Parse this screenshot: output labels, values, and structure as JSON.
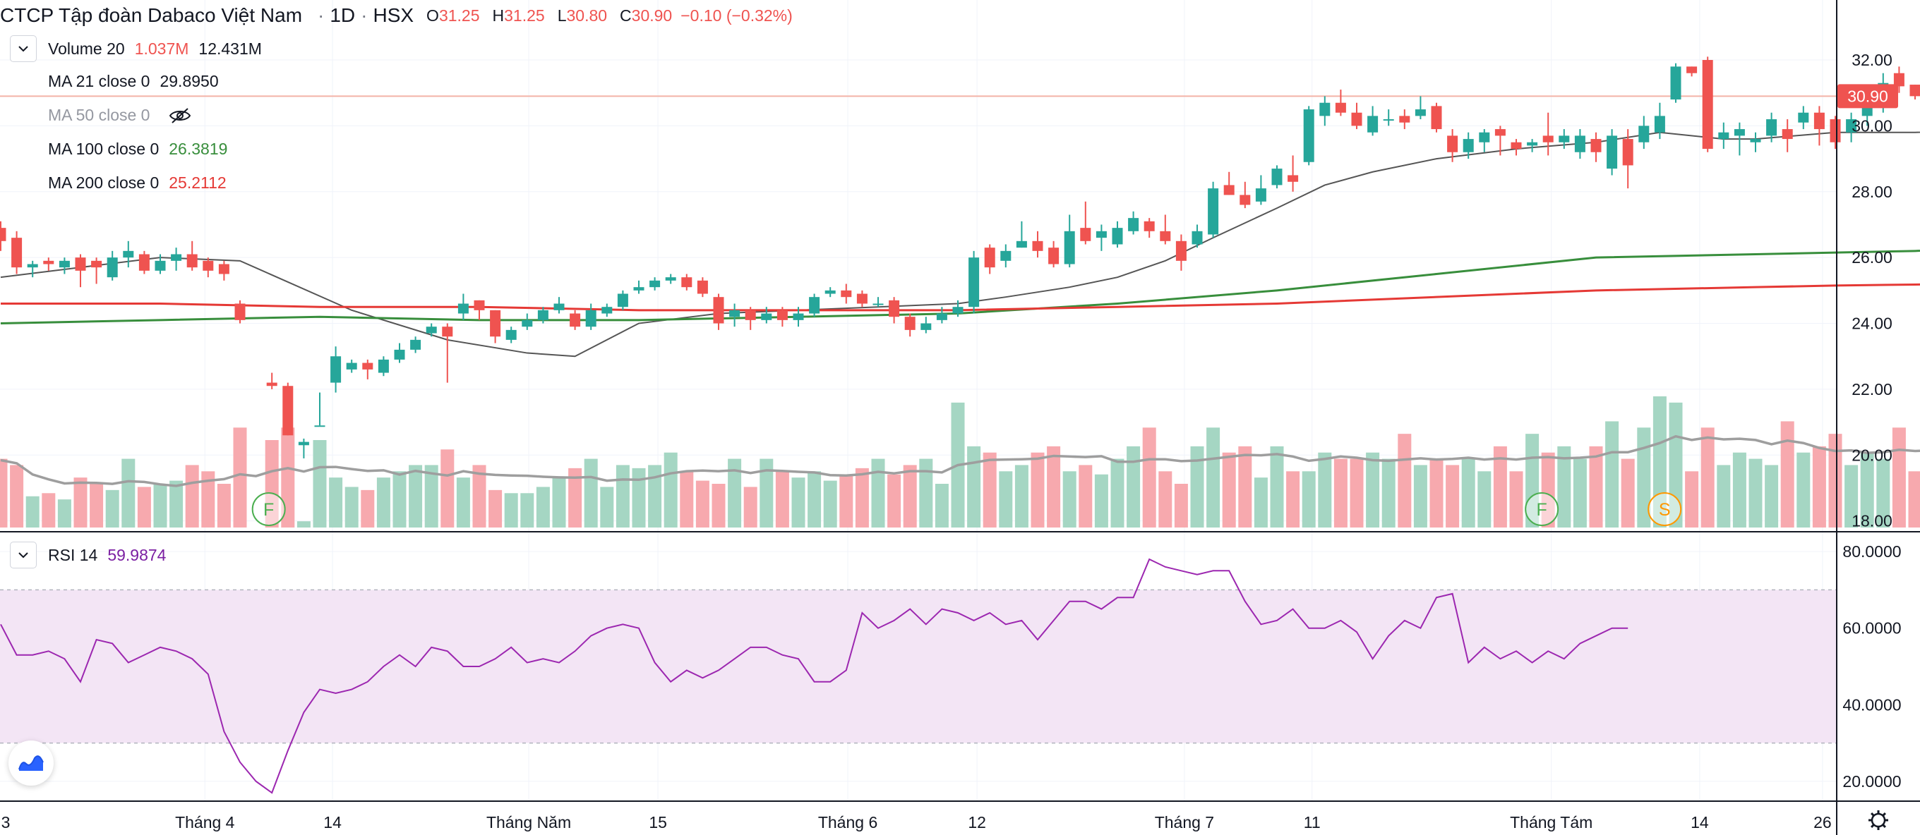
{
  "header": {
    "symbol_name": "CTCP Tập đoàn Dabaco Việt Nam",
    "interval": "1D",
    "exchange": "HSX",
    "sep": "·",
    "open_label": "O",
    "open": "31.25",
    "high_label": "H",
    "high": "31.25",
    "low_label": "L",
    "low": "30.80",
    "close_label": "C",
    "close": "30.90",
    "change": "−0.10 (−0.32%)"
  },
  "legend": {
    "volume": {
      "label": "Volume 20",
      "v1": "1.037M",
      "v2": "12.431M"
    },
    "ma21": {
      "label": "MA 21 close 0",
      "value": "29.8950"
    },
    "ma50": {
      "label": "MA 50 close 0",
      "value": ""
    },
    "ma100": {
      "label": "MA 100 close 0",
      "value": "26.3819"
    },
    "ma200": {
      "label": "MA 200 close 0",
      "value": "25.2112"
    },
    "rsi": {
      "label": "RSI 14",
      "value": "59.9874"
    }
  },
  "colors": {
    "up": "#26a69a",
    "down": "#ef5350",
    "up_volume": "#a5d6c3",
    "down_volume": "#f7a9ae",
    "ma21": "#555555",
    "ma100": "#388e3c",
    "ma200": "#e53935",
    "vol_ma": "#9e9e9e",
    "rsi": "#9c27b0",
    "rsi_band": "#f3e5f5",
    "last_price_line": "#f3b3a8",
    "legend_ma100": "#388e3c",
    "legend_ma200": "#e53935",
    "legend_rsi": "#7b1fa2",
    "legend_change": "#ef5350"
  },
  "icons": {
    "chevron": "chevron-down-icon",
    "eye_hidden": "eye-off-icon",
    "settings": "gear-icon",
    "logo": "tradingview-logo-icon"
  },
  "chart_data": [
    {
      "type": "candlestick",
      "title": "CTCP Tập đoàn Dabaco Việt Nam · 1D · HSX",
      "y_axis_ticks": [
        "32.00",
        "30.00",
        "28.00",
        "26.00",
        "24.00",
        "22.00",
        "20.00",
        "18.00"
      ],
      "y_axis_values": [
        32,
        30,
        28,
        26,
        24,
        22,
        20,
        18
      ],
      "ylim": [
        17.8,
        33.5
      ],
      "last_price_label": "30.90",
      "last_price": 30.9,
      "x_axis_ticks": [
        "3",
        "Tháng 4",
        "14",
        "Tháng Năm",
        "15",
        "Tháng 6",
        "12",
        "Tháng 7",
        "11",
        "Tháng Tám",
        "14",
        "26"
      ],
      "x_axis_tick_bar_index": [
        -0.2,
        12.8,
        20.8,
        33.1,
        41.2,
        53.1,
        61.2,
        74.2,
        82.2,
        97.2,
        106.5,
        114.2
      ],
      "candles": [
        [
          26.9,
          26.5,
          27.1,
          26.2
        ],
        [
          26.6,
          25.7,
          26.8,
          25.5
        ],
        [
          25.7,
          25.8,
          25.9,
          25.4
        ],
        [
          25.9,
          25.8,
          26.0,
          25.6
        ],
        [
          25.7,
          25.9,
          26.0,
          25.5
        ],
        [
          26.0,
          25.6,
          26.1,
          25.1
        ],
        [
          25.9,
          25.7,
          26.0,
          25.2
        ],
        [
          25.4,
          26.0,
          26.2,
          25.3
        ],
        [
          26.0,
          26.2,
          26.5,
          25.7
        ],
        [
          26.1,
          25.6,
          26.2,
          25.5
        ],
        [
          25.6,
          25.9,
          26.1,
          25.5
        ],
        [
          25.9,
          26.1,
          26.3,
          25.6
        ],
        [
          26.1,
          25.7,
          26.5,
          25.6
        ],
        [
          25.9,
          25.6,
          26.0,
          25.4
        ],
        [
          25.8,
          25.5,
          25.9,
          25.3
        ],
        [
          24.6,
          24.1,
          24.7,
          24.0
        ],
        [
          null,
          null,
          null,
          null
        ],
        [
          22.2,
          22.1,
          22.5,
          22.0
        ],
        [
          22.1,
          20.6,
          22.2,
          20.6
        ],
        [
          20.3,
          20.4,
          20.5,
          19.9
        ],
        [
          20.9,
          20.9,
          21.9,
          20.9
        ],
        [
          22.2,
          23.0,
          23.3,
          21.9
        ],
        [
          22.6,
          22.8,
          22.9,
          22.5
        ],
        [
          22.8,
          22.6,
          22.9,
          22.3
        ],
        [
          22.5,
          22.9,
          23.0,
          22.4
        ],
        [
          22.9,
          23.2,
          23.4,
          22.8
        ],
        [
          23.2,
          23.5,
          23.6,
          23.1
        ],
        [
          23.7,
          23.9,
          24.0,
          23.6
        ],
        [
          23.9,
          23.6,
          24.0,
          22.2
        ],
        [
          24.3,
          24.6,
          24.9,
          24.1
        ],
        [
          24.7,
          24.4,
          24.7,
          24.1
        ],
        [
          24.4,
          23.6,
          24.4,
          23.4
        ],
        [
          23.5,
          23.8,
          23.9,
          23.4
        ],
        [
          23.9,
          24.1,
          24.3,
          23.8
        ],
        [
          24.1,
          24.4,
          24.5,
          24.0
        ],
        [
          24.4,
          24.6,
          24.8,
          24.3
        ],
        [
          24.3,
          23.9,
          24.4,
          23.8
        ],
        [
          23.9,
          24.4,
          24.6,
          23.8
        ],
        [
          24.3,
          24.5,
          24.6,
          24.2
        ],
        [
          24.5,
          24.9,
          25.0,
          24.4
        ],
        [
          25.0,
          25.1,
          25.3,
          24.9
        ],
        [
          25.1,
          25.3,
          25.4,
          25.0
        ],
        [
          25.3,
          25.4,
          25.5,
          25.2
        ],
        [
          25.4,
          25.1,
          25.5,
          25.0
        ],
        [
          25.3,
          24.9,
          25.4,
          24.8
        ],
        [
          24.8,
          24.0,
          24.9,
          23.8
        ],
        [
          24.2,
          24.4,
          24.6,
          23.9
        ],
        [
          24.4,
          24.1,
          24.5,
          23.8
        ],
        [
          24.1,
          24.3,
          24.5,
          24.0
        ],
        [
          24.4,
          24.1,
          24.5,
          23.9
        ],
        [
          24.1,
          24.3,
          24.5,
          23.9
        ],
        [
          24.3,
          24.8,
          24.9,
          24.2
        ],
        [
          24.9,
          25.0,
          25.1,
          24.8
        ],
        [
          25.0,
          24.8,
          25.2,
          24.6
        ],
        [
          24.9,
          24.6,
          25.0,
          24.5
        ],
        [
          24.6,
          24.6,
          24.8,
          24.5
        ],
        [
          24.7,
          24.2,
          24.8,
          24.0
        ],
        [
          24.2,
          23.8,
          24.3,
          23.6
        ],
        [
          23.8,
          24.0,
          24.2,
          23.7
        ],
        [
          24.1,
          24.3,
          24.5,
          24.0
        ],
        [
          24.3,
          24.5,
          24.7,
          24.2
        ],
        [
          24.5,
          26.0,
          26.2,
          24.3
        ],
        [
          26.3,
          25.7,
          26.4,
          25.5
        ],
        [
          25.9,
          26.2,
          26.4,
          25.7
        ],
        [
          26.3,
          26.5,
          27.1,
          26.3
        ],
        [
          26.5,
          26.2,
          26.8,
          26.0
        ],
        [
          26.3,
          25.8,
          26.5,
          25.7
        ],
        [
          25.8,
          26.8,
          27.3,
          25.7
        ],
        [
          26.9,
          26.5,
          27.7,
          26.4
        ],
        [
          26.6,
          26.8,
          27.0,
          26.2
        ],
        [
          26.4,
          26.9,
          27.1,
          26.3
        ],
        [
          26.8,
          27.2,
          27.4,
          26.7
        ],
        [
          27.1,
          26.8,
          27.2,
          26.6
        ],
        [
          26.8,
          26.5,
          27.3,
          26.4
        ],
        [
          26.5,
          25.9,
          26.7,
          25.6
        ],
        [
          26.4,
          26.8,
          27.0,
          26.3
        ],
        [
          26.7,
          28.1,
          28.3,
          26.6
        ],
        [
          28.2,
          27.9,
          28.6,
          27.9
        ],
        [
          27.9,
          27.6,
          28.3,
          27.5
        ],
        [
          27.7,
          28.1,
          28.5,
          27.6
        ],
        [
          28.2,
          28.7,
          28.8,
          28.1
        ],
        [
          28.5,
          28.3,
          29.1,
          28.0
        ],
        [
          28.9,
          30.5,
          30.6,
          28.8
        ],
        [
          30.3,
          30.7,
          30.9,
          30.0
        ],
        [
          30.7,
          30.4,
          31.1,
          30.3
        ],
        [
          30.4,
          30.0,
          30.7,
          29.9
        ],
        [
          29.8,
          30.3,
          30.6,
          29.7
        ],
        [
          30.2,
          30.2,
          30.5,
          30.0
        ],
        [
          30.3,
          30.1,
          30.5,
          29.9
        ],
        [
          30.3,
          30.5,
          30.9,
          30.2
        ],
        [
          30.6,
          29.9,
          30.7,
          29.8
        ],
        [
          29.7,
          29.2,
          29.9,
          28.9
        ],
        [
          29.2,
          29.6,
          29.8,
          29.0
        ],
        [
          29.5,
          29.8,
          29.9,
          29.2
        ],
        [
          29.9,
          29.7,
          30.0,
          29.1
        ],
        [
          29.5,
          29.3,
          29.6,
          29.1
        ],
        [
          29.4,
          29.5,
          29.6,
          29.2
        ],
        [
          29.7,
          29.5,
          30.4,
          29.1
        ],
        [
          29.5,
          29.7,
          29.9,
          29.3
        ],
        [
          29.2,
          29.7,
          29.9,
          29.0
        ],
        [
          29.6,
          29.2,
          29.8,
          28.9
        ],
        [
          28.7,
          29.7,
          29.9,
          28.5
        ],
        [
          29.6,
          28.8,
          29.9,
          28.1
        ],
        [
          29.5,
          30.0,
          30.3,
          29.3
        ],
        [
          29.8,
          30.3,
          30.7,
          29.6
        ],
        [
          30.8,
          31.8,
          31.9,
          30.7
        ],
        [
          31.8,
          31.6,
          31.8,
          31.5
        ],
        [
          32.0,
          29.3,
          32.1,
          29.2
        ],
        [
          29.6,
          29.8,
          30.1,
          29.3
        ],
        [
          29.7,
          29.9,
          30.1,
          29.1
        ],
        [
          29.5,
          29.6,
          29.8,
          29.2
        ],
        [
          29.7,
          30.2,
          30.4,
          29.5
        ],
        [
          29.9,
          29.6,
          30.2,
          29.2
        ],
        [
          30.1,
          30.4,
          30.6,
          29.9
        ],
        [
          30.4,
          29.9,
          30.6,
          29.4
        ],
        [
          30.2,
          29.5,
          30.3,
          29.3
        ],
        [
          29.8,
          30.2,
          30.4,
          29.5
        ],
        [
          30.3,
          30.9,
          31.2,
          30.0
        ],
        [
          30.6,
          31.3,
          31.6,
          30.4
        ],
        [
          31.6,
          31.2,
          31.8,
          31.0
        ],
        [
          31.25,
          30.9,
          31.25,
          30.8
        ]
      ]
    },
    {
      "type": "line",
      "series": [
        {
          "name": "MA 21 close 0",
          "x": [
            0,
            10,
            15,
            22,
            28,
            33,
            36,
            40,
            45,
            50,
            55,
            60,
            63,
            67,
            70,
            73,
            76,
            80,
            83,
            86,
            90,
            95,
            100,
            104,
            108,
            110,
            115,
            120,
            125,
            128
          ],
          "values": [
            25.4,
            26.0,
            25.9,
            24.4,
            23.5,
            23.1,
            23.0,
            24.0,
            24.3,
            24.4,
            24.5,
            24.6,
            24.8,
            25.1,
            25.4,
            25.9,
            26.6,
            27.5,
            28.2,
            28.6,
            29.0,
            29.3,
            29.5,
            29.8,
            29.6,
            29.6,
            29.8,
            29.8,
            29.9,
            29.9
          ]
        },
        {
          "name": "MA 100 close 0",
          "x": [
            0,
            10,
            20,
            30,
            40,
            50,
            60,
            70,
            80,
            90,
            100,
            110,
            115,
            120,
            125,
            128
          ],
          "values": [
            24.0,
            24.1,
            24.2,
            24.1,
            24.1,
            24.2,
            24.3,
            24.6,
            25.0,
            25.5,
            26.0,
            26.1,
            26.15,
            26.2,
            26.3,
            26.38
          ]
        },
        {
          "name": "MA 200 close 0",
          "x": [
            0,
            10,
            20,
            30,
            40,
            50,
            60,
            70,
            80,
            90,
            100,
            110,
            115,
            120,
            125,
            128
          ],
          "values": [
            24.6,
            24.6,
            24.5,
            24.5,
            24.4,
            24.4,
            24.4,
            24.5,
            24.6,
            24.8,
            25.0,
            25.1,
            25.15,
            25.18,
            25.2,
            25.21
          ]
        }
      ]
    },
    {
      "type": "bar",
      "name": "Volume 20",
      "values": [
        1.1,
        1.0,
        0.5,
        0.55,
        0.45,
        0.8,
        0.7,
        0.6,
        1.1,
        0.65,
        0.7,
        0.75,
        1.0,
        0.9,
        0.7,
        1.6,
        0.4,
        1.4,
        1.6,
        0.1,
        1.4,
        0.8,
        0.65,
        0.6,
        0.8,
        0.9,
        1.0,
        1.0,
        1.25,
        0.8,
        1.0,
        0.6,
        0.55,
        0.55,
        0.65,
        0.8,
        0.95,
        1.1,
        0.65,
        1.0,
        0.95,
        1.0,
        1.2,
        0.9,
        0.75,
        0.7,
        1.1,
        0.65,
        1.1,
        0.9,
        0.8,
        0.9,
        0.75,
        0.85,
        0.95,
        1.1,
        0.85,
        1.0,
        1.1,
        0.7,
        2.0,
        1.3,
        1.2,
        0.9,
        1.0,
        1.2,
        1.3,
        0.9,
        1.0,
        0.85,
        1.1,
        1.3,
        1.6,
        0.9,
        0.7,
        1.3,
        1.6,
        1.2,
        1.3,
        0.8,
        1.3,
        0.9,
        0.9,
        1.2,
        1.1,
        1.1,
        1.2,
        1.1,
        1.5,
        1.0,
        1.1,
        1.0,
        1.1,
        0.9,
        1.3,
        0.9,
        1.5,
        1.2,
        1.3,
        1.1,
        1.3,
        1.7,
        1.1,
        1.6,
        2.1,
        2.0,
        0.9,
        1.6,
        1.0,
        1.2,
        1.1,
        1.0,
        1.7,
        1.2,
        1.3,
        1.5,
        1.0,
        1.2,
        1.1,
        1.6,
        0.9,
        1.1,
        1.4,
        1.0,
        1.4,
        1.2,
        1.2,
        0.1
      ],
      "volume_ma": "Volume MA 20"
    },
    {
      "type": "line",
      "name": "RSI 14",
      "y_axis_ticks": [
        "80.0000",
        "60.0000",
        "40.0000",
        "20.0000"
      ],
      "y_axis_values": [
        80,
        60,
        40,
        20
      ],
      "ylim": [
        15,
        85
      ],
      "band": [
        30,
        70
      ],
      "values": [
        61,
        53,
        53,
        54,
        52,
        46,
        57,
        56,
        51,
        53,
        55,
        54,
        52,
        48,
        33,
        25,
        20,
        17,
        28,
        38,
        44,
        43,
        44,
        46,
        50,
        53,
        50,
        55,
        54,
        50,
        50,
        52,
        55,
        51,
        52,
        51,
        54,
        58,
        60,
        61,
        60,
        51,
        46,
        49,
        47,
        49,
        52,
        55,
        55,
        53,
        52,
        46,
        46,
        49,
        64,
        60,
        62,
        65,
        61,
        65,
        64,
        62,
        64,
        61,
        62,
        57,
        62,
        67,
        67,
        65,
        68,
        68,
        78,
        76,
        75,
        74,
        75,
        75,
        67,
        61,
        62,
        65,
        60,
        60,
        62,
        59,
        52,
        58,
        62,
        60,
        68,
        69,
        51,
        55,
        52,
        54,
        51,
        54,
        52,
        56,
        58,
        60,
        60
      ]
    }
  ]
}
